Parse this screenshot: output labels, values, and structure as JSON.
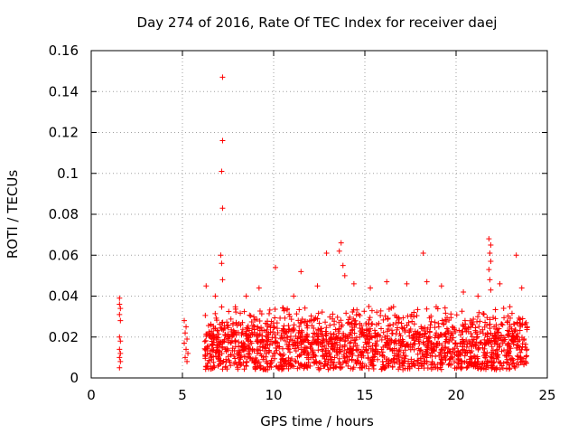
{
  "chart_data": {
    "type": "scatter",
    "title": "Day 274 of 2016, Rate Of TEC Index for receiver daej",
    "xlabel": "GPS time / hours",
    "ylabel": "ROTI / TECUs",
    "xlim": [
      0,
      25
    ],
    "ylim": [
      0,
      0.16
    ],
    "xticks": [
      0,
      5,
      10,
      15,
      20,
      25
    ],
    "xtick_labels": [
      "0",
      "5",
      "10",
      "15",
      "20",
      "25"
    ],
    "yticks": [
      0,
      0.02,
      0.04,
      0.06,
      0.08,
      0.1,
      0.12,
      0.14,
      0.16
    ],
    "ytick_labels": [
      "0",
      "0.02",
      "0.04",
      "0.06",
      "0.08",
      "0.1",
      "0.12",
      "0.14",
      "0.16"
    ],
    "grid": true,
    "marker": "+",
    "color": "#ff0000",
    "series": [
      {
        "name": "ROTI",
        "points": [
          [
            1.55,
            0.039
          ],
          [
            1.55,
            0.036
          ],
          [
            1.6,
            0.034
          ],
          [
            1.55,
            0.031
          ],
          [
            1.6,
            0.028
          ],
          [
            1.55,
            0.02
          ],
          [
            1.6,
            0.018
          ],
          [
            1.55,
            0.014
          ],
          [
            1.6,
            0.012
          ],
          [
            1.55,
            0.01
          ],
          [
            1.6,
            0.008
          ],
          [
            1.55,
            0.005
          ],
          [
            5.1,
            0.028
          ],
          [
            5.2,
            0.025
          ],
          [
            5.15,
            0.022
          ],
          [
            5.25,
            0.019
          ],
          [
            5.1,
            0.017
          ],
          [
            5.2,
            0.014
          ],
          [
            5.3,
            0.012
          ],
          [
            5.15,
            0.01
          ],
          [
            5.25,
            0.008
          ],
          [
            6.3,
            0.045
          ],
          [
            6.8,
            0.04
          ],
          [
            7.1,
            0.06
          ],
          [
            7.15,
            0.056
          ],
          [
            7.2,
            0.048
          ],
          [
            7.2,
            0.083
          ],
          [
            7.15,
            0.101
          ],
          [
            7.2,
            0.116
          ],
          [
            7.2,
            0.147
          ],
          [
            8.5,
            0.04
          ],
          [
            9.2,
            0.044
          ],
          [
            10.1,
            0.054
          ],
          [
            11.1,
            0.04
          ],
          [
            11.5,
            0.052
          ],
          [
            12.4,
            0.045
          ],
          [
            12.9,
            0.061
          ],
          [
            13.7,
            0.066
          ],
          [
            13.6,
            0.062
          ],
          [
            13.8,
            0.055
          ],
          [
            13.9,
            0.05
          ],
          [
            14.4,
            0.046
          ],
          [
            15.3,
            0.044
          ],
          [
            16.2,
            0.047
          ],
          [
            17.3,
            0.046
          ],
          [
            18.2,
            0.061
          ],
          [
            18.4,
            0.047
          ],
          [
            19.2,
            0.045
          ],
          [
            20.4,
            0.042
          ],
          [
            21.2,
            0.04
          ],
          [
            21.8,
            0.068
          ],
          [
            21.9,
            0.065
          ],
          [
            21.85,
            0.061
          ],
          [
            21.9,
            0.057
          ],
          [
            21.8,
            0.053
          ],
          [
            21.85,
            0.048
          ],
          [
            21.9,
            0.043
          ],
          [
            22.4,
            0.046
          ],
          [
            23.3,
            0.06
          ],
          [
            23.6,
            0.044
          ]
        ],
        "dense_band": {
          "x_range": [
            6.2,
            23.9
          ],
          "typical_y_range": [
            0.004,
            0.035
          ],
          "median_y": 0.016
        }
      }
    ]
  }
}
